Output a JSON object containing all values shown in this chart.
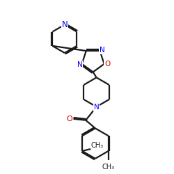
{
  "bg_color": "#ffffff",
  "bond_color": "#1a1a1a",
  "N_color": "#0000ff",
  "O_color": "#cc0000",
  "line_width": 1.6,
  "font_size": 7.5,
  "figsize": [
    2.5,
    2.5
  ],
  "dpi": 100,
  "xlim": [
    0,
    10
  ],
  "ylim": [
    0,
    10
  ]
}
